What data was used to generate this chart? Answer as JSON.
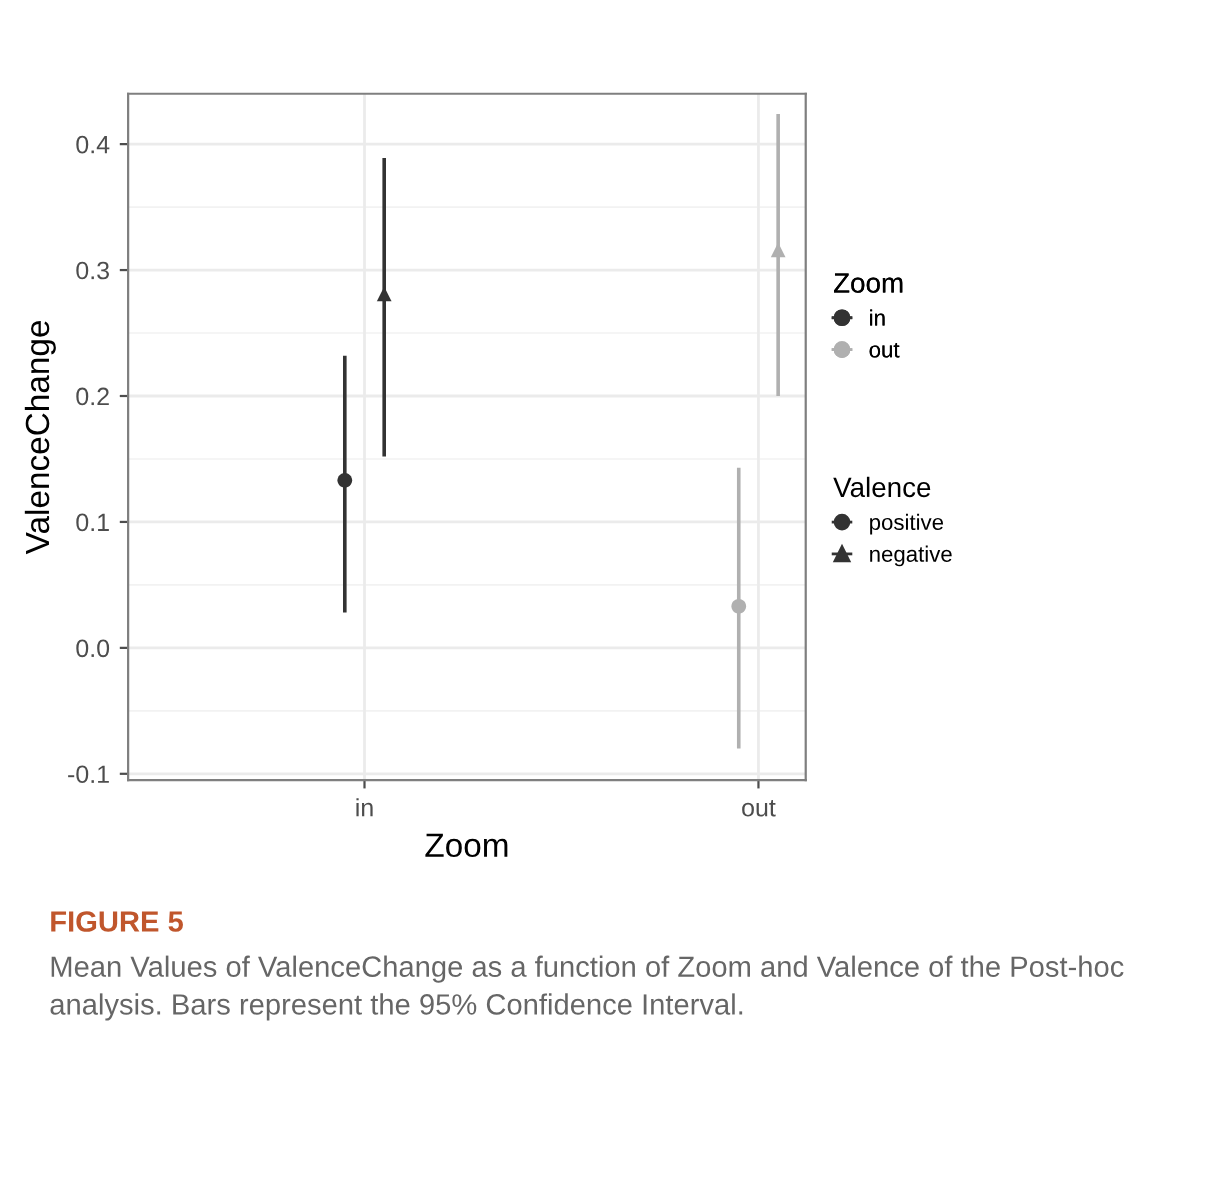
{
  "chart_data": {
    "type": "scatter",
    "xlabel": "Zoom",
    "ylabel": "ValenceChange",
    "categories": [
      "in",
      "out"
    ],
    "series": [
      {
        "name": "positive",
        "marker": "circle",
        "colors": [
          "#333333",
          "#b0b0b0"
        ],
        "values": [
          0.133,
          0.033
        ],
        "errors": [
          [
            0.028,
            0.232
          ],
          [
            -0.08,
            0.143
          ]
        ]
      },
      {
        "name": "negative",
        "marker": "triangle",
        "colors": [
          "#333333",
          "#b0b0b0"
        ],
        "values": [
          0.281,
          0.316
        ],
        "errors": [
          [
            0.152,
            0.389
          ],
          [
            0.2,
            0.424
          ]
        ]
      }
    ],
    "legend_title": [
      "Zoom",
      "Valence"
    ],
    "legend": "right",
    "ylim": [
      -0.105,
      0.44
    ],
    "yticks": [
      {
        "value": -0.1,
        "label": "-0.1"
      },
      {
        "value": 0.0,
        "label": "0.0"
      },
      0.1,
      0.2,
      0.3,
      0.4
    ],
    "grid": true,
    "annotations": [
      "FIGURE 5",
      "Mean Values of ValenceChange as a function of Zoom and Valence of the Post-hoc analysis. Bars represent the 95% Confidence Interval."
    ]
  }
}
